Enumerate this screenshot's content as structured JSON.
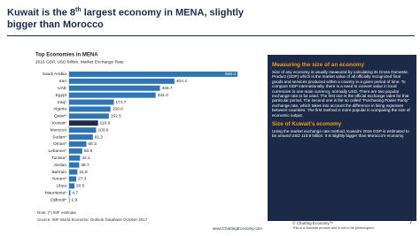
{
  "header": {
    "title": [
      "Kuwait is the 8",
      "th",
      " largest economy in MENA, slightly bigger than Morocco"
    ]
  },
  "chart_data": {
    "type": "hbar",
    "title": "Top Economies in MENA",
    "subtitle": "2016 GDP, USD billion, Market Exchange Rate",
    "categories": [
      "Saudi Arabia",
      "Iran",
      "UAE",
      "Egypt",
      "Iraq*",
      "Algeria",
      "Qatar*",
      "Kuwait*",
      "Morocco",
      "Sudan*",
      "Oman*",
      "Lebanon*",
      "Tunisia*",
      "Jordan",
      "Bahrain",
      "Yemen*",
      "Libya",
      "Mauritania*",
      "Djibouti*"
    ],
    "values": [
      646.4,
      404.4,
      348.7,
      332.3,
      171.7,
      159,
      152.5,
      110.9,
      103.6,
      91.2,
      66.3,
      50.5,
      42.1,
      38.7,
      31.9,
      27.3,
      20.5,
      4.7,
      1.9
    ],
    "value_labels": [
      "646.4",
      "404.4",
      "348.7",
      "332.3",
      "171.7",
      "159.0",
      "152.5",
      "110.9",
      "103.6",
      "91.2",
      "66.3",
      "50.5",
      "42.1",
      "38.7",
      "31.9",
      "27.3",
      "20.5",
      "4.7",
      "1.9"
    ],
    "color": "#2e75b6",
    "highlight_color": "#1c2a48",
    "highlight": "Kuwait*",
    "note": "Note: (*) IMF estimate",
    "source": "Source: IMF World Economic Outlook Database October 2017"
  },
  "panel": {
    "heading1": "Measuring the size of an economy",
    "text1": "Size of any economy is usually measured by calculating its Gross Domestic Product (GDP) which is the market value of all officially recognized final goods and services produced within a country in a given period of time. To compare GDP internationally, there is a need to convert value in local currencies to one main currency, normally USD. There are two popular exchange rate to be used. The first one is the official exchange rates for that particular period. The second one is the so called \"Purchasing Power Parity\" exchange rate, which takes into account the difference in living expenses between countries. The first method is more popular in comparing the size of economic output.",
    "heading2": "Size of Kuwait's economy",
    "text2": "Using the market exchange rate method, Kuwait's 2016 GDP is estimated to be around USD 110.9 billion. It is slightly bigger than Morocco's economy."
  },
  "footer": {
    "copyright": "© Charting Economy™",
    "license": "This is a licensed product and is not to be photocopied",
    "website": "www.ChartingEconomy.com",
    "page": "7"
  }
}
